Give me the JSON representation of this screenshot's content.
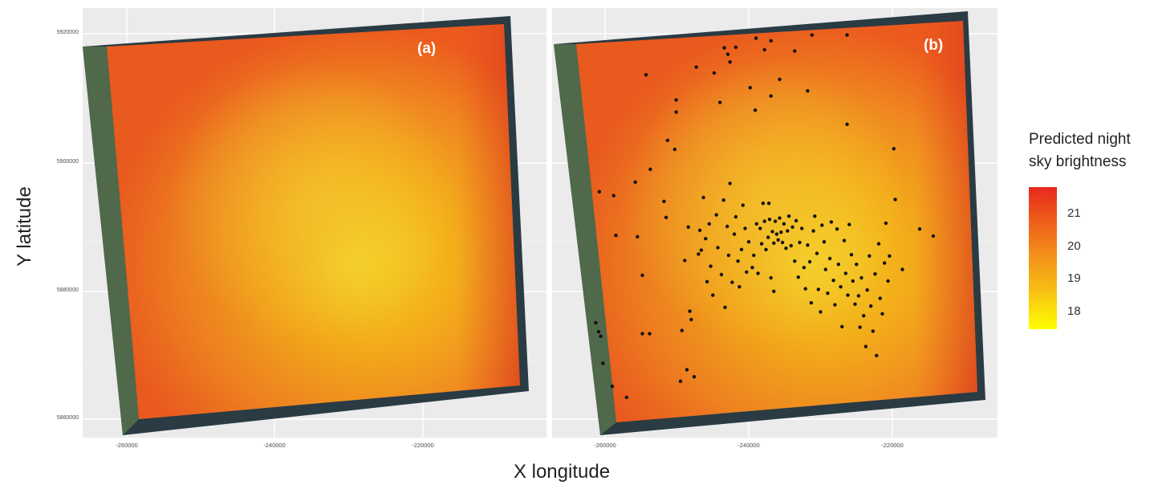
{
  "figure": {
    "xlabel": "X longitude",
    "ylabel": "Y latitude"
  },
  "legend": {
    "title": "Predicted night\nsky brightness",
    "colors": [
      "#ffff00",
      "#f7bd14",
      "#f3901a",
      "#ee5a1a",
      "#e8281e"
    ],
    "ticks": [
      "21",
      "20",
      "19",
      "18"
    ]
  },
  "panels": [
    {
      "label": "(a)",
      "yticks": [
        "5920000",
        "5900000",
        "5880000",
        "5860000"
      ],
      "xticks": [
        "-260000",
        "-240000",
        "-220000"
      ]
    },
    {
      "label": "(b)",
      "yticks": [],
      "xticks": [
        "-260000",
        "-240000",
        "-220000"
      ]
    }
  ],
  "chart_data": {
    "type": "scatter",
    "xlabel": "X longitude",
    "ylabel": "Y latitude",
    "legend_title": "Predicted night sky brightness",
    "colorbar_range": [
      17.5,
      21.6
    ],
    "colorbar_ticks": [
      18,
      19,
      20,
      21
    ],
    "xlim": [
      -268000,
      -206000
    ],
    "ylim": [
      5856000,
      5922000
    ],
    "panel_b_sample_points": [
      [
        -260800,
        5895400
      ],
      [
        -258800,
        5894800
      ],
      [
        -258500,
        5888600
      ],
      [
        -255800,
        5896900
      ],
      [
        -255500,
        5888400
      ],
      [
        -254800,
        5882400
      ],
      [
        -254800,
        5873300
      ],
      [
        -254300,
        5913600
      ],
      [
        -253800,
        5873300
      ],
      [
        -251800,
        5893900
      ],
      [
        -251500,
        5891400
      ],
      [
        -250300,
        5902000
      ],
      [
        -250100,
        5907800
      ],
      [
        -249300,
        5873800
      ],
      [
        -248900,
        5884700
      ],
      [
        -248400,
        5889900
      ],
      [
        -248200,
        5876800
      ],
      [
        -248000,
        5875500
      ],
      [
        -247300,
        5914800
      ],
      [
        -247000,
        5885700
      ],
      [
        -246800,
        5889400
      ],
      [
        -246600,
        5886300
      ],
      [
        -246300,
        5894500
      ],
      [
        -246000,
        5888100
      ],
      [
        -245800,
        5881400
      ],
      [
        -245500,
        5890400
      ],
      [
        -245300,
        5883800
      ],
      [
        -245000,
        5879300
      ],
      [
        -244800,
        5913900
      ],
      [
        -244500,
        5891800
      ],
      [
        -244300,
        5886700
      ],
      [
        -244000,
        5909300
      ],
      [
        -243800,
        5882500
      ],
      [
        -243500,
        5894100
      ],
      [
        -243300,
        5877400
      ],
      [
        -243000,
        5890000
      ],
      [
        -242800,
        5885500
      ],
      [
        -242600,
        5896700
      ],
      [
        -242300,
        5881300
      ],
      [
        -242000,
        5888800
      ],
      [
        -241800,
        5891500
      ],
      [
        -241500,
        5884600
      ],
      [
        -241300,
        5880600
      ],
      [
        -241000,
        5886400
      ],
      [
        -240800,
        5893300
      ],
      [
        -240500,
        5889700
      ],
      [
        -240300,
        5882900
      ],
      [
        -240000,
        5887600
      ],
      [
        -239800,
        5911600
      ],
      [
        -239500,
        5883600
      ],
      [
        -239300,
        5885500
      ],
      [
        -239100,
        5908100
      ],
      [
        -238900,
        5890400
      ],
      [
        -238700,
        5882700
      ],
      [
        -238400,
        5889700
      ],
      [
        -238200,
        5887300
      ],
      [
        -238000,
        5893600
      ],
      [
        -237800,
        5890800
      ],
      [
        -237600,
        5886400
      ],
      [
        -237300,
        5888300
      ],
      [
        -237100,
        5891100
      ],
      [
        -236900,
        5882000
      ],
      [
        -236700,
        5889200
      ],
      [
        -236500,
        5887400
      ],
      [
        -236300,
        5890800
      ],
      [
        -236100,
        5888800
      ],
      [
        -235900,
        5887900
      ],
      [
        -235700,
        5891300
      ],
      [
        -235500,
        5889100
      ],
      [
        -235300,
        5887500
      ],
      [
        -235100,
        5890400
      ],
      [
        -234800,
        5886600
      ],
      [
        -234600,
        5889300
      ],
      [
        -234400,
        5891600
      ],
      [
        -234100,
        5887000
      ],
      [
        -233900,
        5889900
      ],
      [
        -233600,
        5884600
      ],
      [
        -233400,
        5890900
      ],
      [
        -233100,
        5882100
      ],
      [
        -232900,
        5887500
      ],
      [
        -232600,
        5889700
      ],
      [
        -232300,
        5883600
      ],
      [
        -232100,
        5880300
      ],
      [
        -231800,
        5887100
      ],
      [
        -231500,
        5884500
      ],
      [
        -231300,
        5878100
      ],
      [
        -231000,
        5889300
      ],
      [
        -230800,
        5891600
      ],
      [
        -230500,
        5885800
      ],
      [
        -230300,
        5880200
      ],
      [
        -230000,
        5876700
      ],
      [
        -229800,
        5890200
      ],
      [
        -229500,
        5887600
      ],
      [
        -229300,
        5883300
      ],
      [
        -229000,
        5879600
      ],
      [
        -228700,
        5885000
      ],
      [
        -228500,
        5890700
      ],
      [
        -228200,
        5881600
      ],
      [
        -228000,
        5877800
      ],
      [
        -227700,
        5889600
      ],
      [
        -227500,
        5884100
      ],
      [
        -227200,
        5880600
      ],
      [
        -227000,
        5874400
      ],
      [
        -226700,
        5887800
      ],
      [
        -226500,
        5882700
      ],
      [
        -226200,
        5879300
      ],
      [
        -226000,
        5890300
      ],
      [
        -225700,
        5885600
      ],
      [
        -225500,
        5881500
      ],
      [
        -225200,
        5877900
      ],
      [
        -225000,
        5884100
      ],
      [
        -224700,
        5879200
      ],
      [
        -224500,
        5874300
      ],
      [
        -224300,
        5882000
      ],
      [
        -224000,
        5876100
      ],
      [
        -223700,
        5871300
      ],
      [
        -223500,
        5880100
      ],
      [
        -223200,
        5885400
      ],
      [
        -223000,
        5877600
      ],
      [
        -222700,
        5873700
      ],
      [
        -222400,
        5882600
      ],
      [
        -222200,
        5869900
      ],
      [
        -221900,
        5887300
      ],
      [
        -221700,
        5878800
      ],
      [
        -221400,
        5876400
      ],
      [
        -221100,
        5884300
      ],
      [
        -220900,
        5890500
      ],
      [
        -220600,
        5881500
      ],
      [
        -220400,
        5885400
      ],
      [
        -219800,
        5902100
      ],
      [
        -219600,
        5894200
      ],
      [
        -218600,
        5883300
      ],
      [
        -216200,
        5889600
      ],
      [
        -214300,
        5888500
      ],
      [
        -237200,
        5893600
      ],
      [
        -236500,
        5879900
      ],
      [
        -236900,
        5910300
      ],
      [
        -237800,
        5917500
      ],
      [
        -239000,
        5919300
      ],
      [
        -236900,
        5918900
      ],
      [
        -235700,
        5912900
      ],
      [
        -233600,
        5917300
      ],
      [
        -231800,
        5911100
      ],
      [
        -231200,
        5919800
      ],
      [
        -226300,
        5919800
      ],
      [
        -226300,
        5905900
      ],
      [
        -242600,
        5915600
      ],
      [
        -243400,
        5917800
      ],
      [
        -242900,
        5916800
      ],
      [
        -241800,
        5917900
      ],
      [
        -250100,
        5909700
      ],
      [
        -251300,
        5903400
      ],
      [
        -253700,
        5898900
      ],
      [
        -261300,
        5875000
      ],
      [
        -260900,
        5873600
      ],
      [
        -260600,
        5872900
      ],
      [
        -260300,
        5868700
      ],
      [
        -259000,
        5865100
      ],
      [
        -257000,
        5863400
      ],
      [
        -249500,
        5865900
      ],
      [
        -248600,
        5867700
      ],
      [
        -247600,
        5866600
      ]
    ]
  }
}
